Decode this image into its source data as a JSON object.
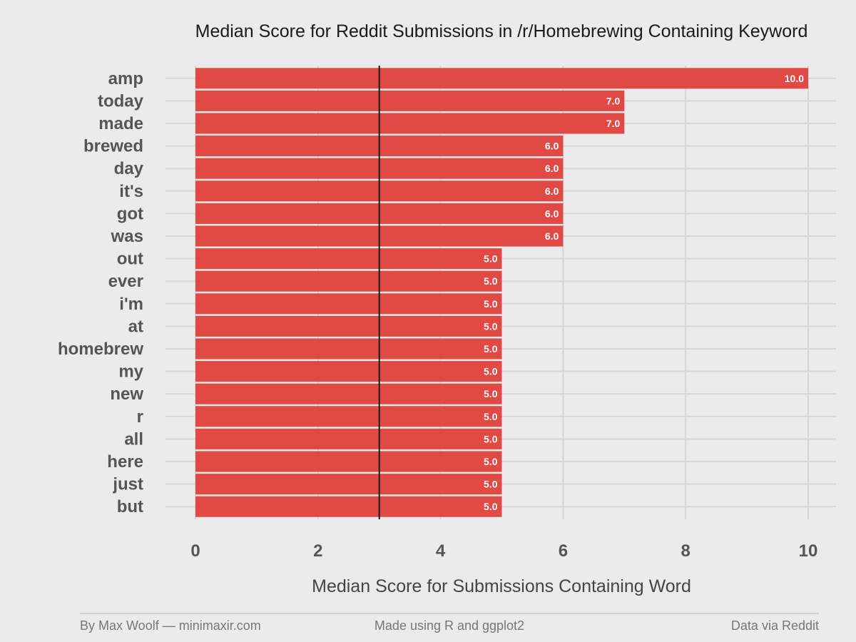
{
  "chart_data": {
    "type": "bar",
    "orientation": "horizontal",
    "title": "Median Score for Reddit Submissions in /r/Homebrewing Containing Keyword",
    "xlabel": "Median Score for Submissions Containing Word",
    "ylabel": "",
    "categories": [
      "amp",
      "today",
      "made",
      "brewed",
      "day",
      "it's",
      "got",
      "was",
      "out",
      "ever",
      "i'm",
      "at",
      "homebrew",
      "my",
      "new",
      "r",
      "all",
      "here",
      "just",
      "but"
    ],
    "values": [
      10.0,
      7.0,
      7.0,
      6.0,
      6.0,
      6.0,
      6.0,
      6.0,
      5.0,
      5.0,
      5.0,
      5.0,
      5.0,
      5.0,
      5.0,
      5.0,
      5.0,
      5.0,
      5.0,
      5.0
    ],
    "value_labels": [
      "10.0",
      "7.0",
      "7.0",
      "6.0",
      "6.0",
      "6.0",
      "6.0",
      "6.0",
      "5.0",
      "5.0",
      "5.0",
      "5.0",
      "5.0",
      "5.0",
      "5.0",
      "5.0",
      "5.0",
      "5.0",
      "5.0",
      "5.0"
    ],
    "xlim": [
      0,
      10
    ],
    "x_ticks": [
      0,
      2,
      4,
      6,
      8,
      10
    ],
    "x_tick_labels": [
      "0",
      "2",
      "4",
      "6",
      "8",
      "10"
    ],
    "reference_line": 3,
    "grid": true,
    "bar_color": "#e0403c",
    "background_color": "#ebebeb",
    "reference_line_color": "#1a1a1a"
  },
  "footer": {
    "left": "By Max Woolf — minimaxir.com",
    "center": "Made using R and ggplot2",
    "right": "Data via Reddit"
  }
}
